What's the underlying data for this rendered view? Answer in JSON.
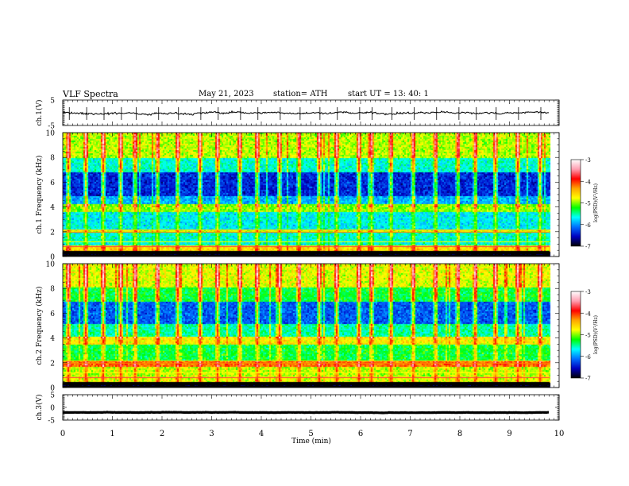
{
  "header": {
    "title": "VLF  Spectra",
    "date": "May 21, 2023",
    "station": "station= ATH",
    "start": "start  UT  =    13: 40: 1"
  },
  "colorbar": {
    "label": "log(PSD)(V²/Hz)",
    "ticks": [
      -3,
      -4,
      -5,
      -6,
      -7
    ],
    "colors": [
      "#ffffff",
      "#ff9db0",
      "#ff0000",
      "#ffa500",
      "#ffff00",
      "#00ff00",
      "#00ffff",
      "#0070ff",
      "#0000c0",
      "#000000"
    ]
  },
  "chart_data": [
    {
      "type": "line",
      "name": "ch1-voltage",
      "ylabel": "ch.1(V)",
      "ylim": [
        -5,
        5
      ],
      "yticks": [
        5,
        -5
      ],
      "xlim": [
        0,
        10
      ],
      "series": [
        {
          "name": "ch.1",
          "baseline": 0,
          "noise_amplitude": 1,
          "end_min": 9.8
        }
      ]
    },
    {
      "type": "heatmap",
      "name": "ch1-spectrogram",
      "ylabel": "ch.1 Frequency (kHz)",
      "ylim": [
        0,
        10
      ],
      "yticks": [
        0,
        2,
        4,
        6,
        8,
        10
      ],
      "xlim": [
        0,
        10
      ],
      "end_min": 9.8,
      "psd_range": [
        -7,
        -3
      ],
      "bands": [
        {
          "from_khz": 0,
          "to_khz": 0.4,
          "level": -7
        },
        {
          "from_khz": 0.4,
          "to_khz": 1,
          "level": -4.6
        },
        {
          "from_khz": 1,
          "to_khz": 2,
          "level": -5.6
        },
        {
          "from_khz": 2,
          "to_khz": 2.3,
          "level": -4.8
        },
        {
          "from_khz": 2.3,
          "to_khz": 3.6,
          "level": -5.7
        },
        {
          "from_khz": 3.6,
          "to_khz": 4.3,
          "level": -5.0
        },
        {
          "from_khz": 4.3,
          "to_khz": 5,
          "level": -5.9
        },
        {
          "from_khz": 5,
          "to_khz": 6.8,
          "level": -6.4
        },
        {
          "from_khz": 6.8,
          "to_khz": 8,
          "level": -5.6
        },
        {
          "from_khz": 8,
          "to_khz": 10,
          "level": -4.9
        }
      ],
      "spheric_times_min": [
        0.1,
        0.45,
        0.8,
        1.15,
        1.45,
        1.9,
        2.3,
        2.75,
        3.1,
        3.55,
        3.9,
        4.35,
        4.75,
        5.15,
        5.5,
        5.95,
        6.2,
        6.6,
        7.05,
        7.5,
        7.95,
        8.3,
        8.7,
        9.15,
        9.6
      ]
    },
    {
      "type": "heatmap",
      "name": "ch2-spectrogram",
      "ylabel": "ch.2 Frequency (kHz)",
      "ylim": [
        0,
        10
      ],
      "yticks": [
        0,
        2,
        4,
        6,
        8,
        10
      ],
      "xlim": [
        0,
        10
      ],
      "end_min": 9.8,
      "psd_range": [
        -7,
        -3
      ],
      "bands": [
        {
          "from_khz": 0,
          "to_khz": 0.4,
          "level": -7
        },
        {
          "from_khz": 0.4,
          "to_khz": 1,
          "level": -4.8
        },
        {
          "from_khz": 1,
          "to_khz": 1.7,
          "level": -4.9
        },
        {
          "from_khz": 1.7,
          "to_khz": 2.2,
          "level": -4.2
        },
        {
          "from_khz": 2.2,
          "to_khz": 3.5,
          "level": -5.3
        },
        {
          "from_khz": 3.5,
          "to_khz": 4.2,
          "level": -4.7
        },
        {
          "from_khz": 4.2,
          "to_khz": 5.2,
          "level": -5.5
        },
        {
          "from_khz": 5.2,
          "to_khz": 7,
          "level": -6.2
        },
        {
          "from_khz": 7,
          "to_khz": 8.2,
          "level": -5.3
        },
        {
          "from_khz": 8.2,
          "to_khz": 10,
          "level": -4.8
        }
      ],
      "spheric_times_min": [
        0.1,
        0.45,
        0.8,
        1.15,
        1.45,
        1.9,
        2.3,
        2.75,
        3.1,
        3.55,
        3.9,
        4.35,
        4.75,
        5.15,
        5.5,
        5.95,
        6.2,
        6.6,
        7.05,
        7.5,
        7.95,
        8.3,
        8.7,
        9.15,
        9.6
      ]
    },
    {
      "type": "line",
      "name": "ch3-voltage",
      "ylabel": "ch.3(V)",
      "ylim": [
        -5,
        5
      ],
      "yticks": [
        5,
        0,
        -5
      ],
      "xlim": [
        0,
        10
      ],
      "xlabel": "Time  (min)",
      "xticks": [
        0,
        1,
        2,
        3,
        4,
        5,
        6,
        7,
        8,
        9,
        10
      ],
      "series": [
        {
          "name": "ch.3",
          "baseline": -2,
          "noise_amplitude": 0.15,
          "end_min": 9.8
        }
      ]
    }
  ]
}
